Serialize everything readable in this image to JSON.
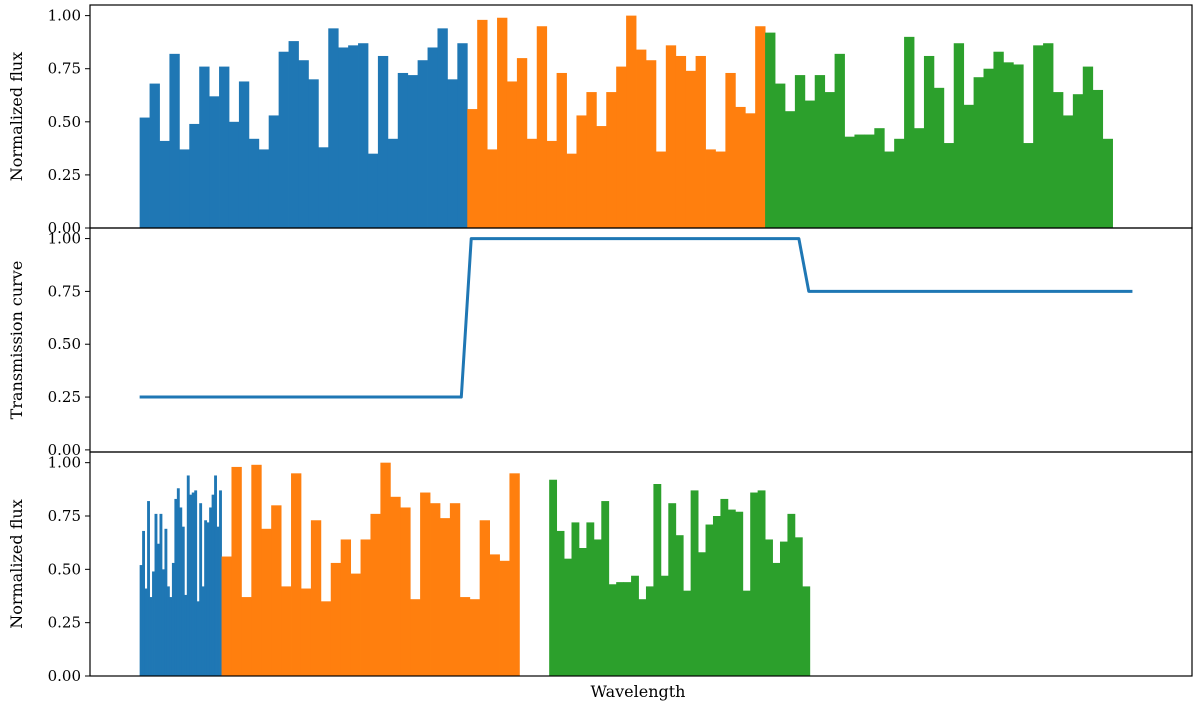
{
  "figure": {
    "xlabel": "Wavelength"
  },
  "chart_data": [
    {
      "type": "bar",
      "panel": "top",
      "ylabel": "Normalized flux",
      "ylim": [
        0,
        1.05
      ],
      "xlim": [
        -5,
        106
      ],
      "yticks": [
        "0.00",
        "0.25",
        "0.50",
        "0.75",
        "1.00"
      ],
      "grid": false,
      "series": [
        {
          "color": "#1f77b4",
          "x_start": 0,
          "bin_width": 1,
          "values": [
            0.52,
            0.68,
            0.41,
            0.82,
            0.37,
            0.49,
            0.76,
            0.62,
            0.76,
            0.5,
            0.69,
            0.42,
            0.37,
            0.53,
            0.83,
            0.88,
            0.79,
            0.7,
            0.38,
            0.94,
            0.85,
            0.86,
            0.87,
            0.35,
            0.81,
            0.42,
            0.73,
            0.72,
            0.79,
            0.85,
            0.94,
            0.7,
            0.87
          ]
        },
        {
          "color": "#ff7f0e",
          "x_start": 33,
          "bin_width": 1,
          "values": [
            0.56,
            0.98,
            0.37,
            0.99,
            0.69,
            0.8,
            0.42,
            0.95,
            0.41,
            0.73,
            0.35,
            0.53,
            0.64,
            0.48,
            0.64,
            0.76,
            1.0,
            0.84,
            0.79,
            0.36,
            0.86,
            0.81,
            0.74,
            0.81,
            0.37,
            0.36,
            0.73,
            0.57,
            0.54,
            0.95
          ]
        },
        {
          "color": "#2ca02c",
          "x_start": 63,
          "bin_width": 1,
          "values": [
            0.92,
            0.68,
            0.55,
            0.72,
            0.6,
            0.72,
            0.64,
            0.82,
            0.43,
            0.44,
            0.44,
            0.47,
            0.36,
            0.42,
            0.9,
            0.47,
            0.81,
            0.66,
            0.4,
            0.87,
            0.58,
            0.71,
            0.75,
            0.83,
            0.78,
            0.77,
            0.4,
            0.86,
            0.87,
            0.64,
            0.53,
            0.63,
            0.76,
            0.65,
            0.42
          ]
        }
      ]
    },
    {
      "type": "line",
      "panel": "middle",
      "ylabel": "Transmission curve",
      "ylim": [
        -0.01,
        1.05
      ],
      "xlim": [
        -5,
        106
      ],
      "yticks": [
        "0.00",
        "0.25",
        "0.50",
        "0.75",
        "1.00"
      ],
      "grid": false,
      "series": [
        {
          "color": "#1f77b4",
          "x": [
            0,
            32.4,
            33.4,
            66.4,
            67.4,
            100
          ],
          "y": [
            0.25,
            0.25,
            1.0,
            1.0,
            0.75,
            0.75
          ]
        }
      ]
    },
    {
      "type": "bar",
      "panel": "bottom",
      "ylabel": "Normalized flux",
      "ylim": [
        0,
        1.05
      ],
      "xlim": [
        -5,
        106
      ],
      "yticks": [
        "0.00",
        "0.25",
        "0.50",
        "0.75",
        "1.00"
      ],
      "grid": false,
      "series": [
        {
          "color": "#1f77b4",
          "x_start": 0,
          "bin_width": 0.25,
          "values": [
            0.52,
            0.68,
            0.41,
            0.82,
            0.37,
            0.49,
            0.76,
            0.62,
            0.76,
            0.5,
            0.69,
            0.42,
            0.37,
            0.53,
            0.83,
            0.88,
            0.79,
            0.7,
            0.38,
            0.94,
            0.85,
            0.86,
            0.87,
            0.35,
            0.81,
            0.42,
            0.73,
            0.72,
            0.79,
            0.85,
            0.94,
            0.7,
            0.87
          ]
        },
        {
          "color": "#ff7f0e",
          "x_start": 8.25,
          "bin_width": 1,
          "values": [
            0.56,
            0.98,
            0.37,
            0.99,
            0.69,
            0.8,
            0.42,
            0.95,
            0.41,
            0.73,
            0.35,
            0.53,
            0.64,
            0.48,
            0.64,
            0.76,
            1.0,
            0.84,
            0.79,
            0.36,
            0.86,
            0.81,
            0.74,
            0.81,
            0.37,
            0.36,
            0.73,
            0.57,
            0.54,
            0.95
          ]
        },
        {
          "color": "#2ca02c",
          "x_start": 41.25,
          "bin_width": 0.75,
          "values": [
            0.92,
            0.68,
            0.55,
            0.72,
            0.6,
            0.72,
            0.64,
            0.82,
            0.43,
            0.44,
            0.44,
            0.47,
            0.36,
            0.42,
            0.9,
            0.47,
            0.81,
            0.66,
            0.4,
            0.87,
            0.58,
            0.71,
            0.75,
            0.83,
            0.78,
            0.77,
            0.4,
            0.86,
            0.87,
            0.64,
            0.53,
            0.63,
            0.76,
            0.65,
            0.42
          ]
        }
      ]
    }
  ]
}
